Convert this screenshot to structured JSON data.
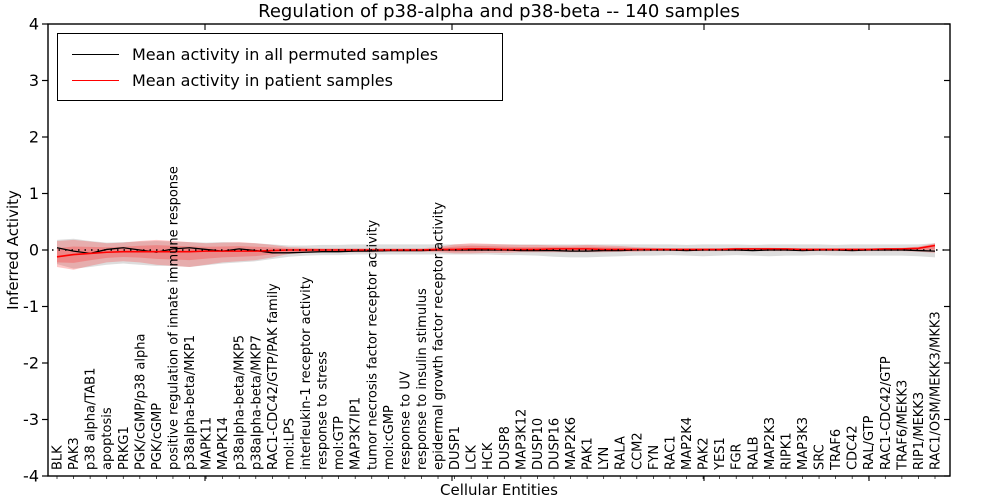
{
  "title": "Regulation of p38-alpha and p38-beta -- 140 samples",
  "axes": {
    "ylabel": "Inferred Activity",
    "xlabel": "Cellular Entities",
    "yticks": [
      "4",
      "3",
      "2",
      "1",
      "0",
      "-1",
      "-2",
      "-3",
      "-4"
    ],
    "ylim": [
      -4,
      4
    ]
  },
  "legend": {
    "items": [
      {
        "label": "Mean activity in all permuted samples",
        "color": "#000000"
      },
      {
        "label": "Mean activity in patient samples",
        "color": "#ff0000"
      }
    ]
  },
  "colors": {
    "permuted_line": "#000000",
    "permuted_band": "#aaaaaa",
    "patient_line": "#ff0000",
    "patient_band": "#ff3333",
    "zero_line": "#000000"
  },
  "chart_data": {
    "type": "line",
    "title": "Regulation of p38-alpha and p38-beta -- 140 samples",
    "xlabel": "Cellular Entities",
    "ylabel": "Inferred Activity",
    "ylim": [
      -4,
      4
    ],
    "grid": false,
    "zero_reference_line": "dotted",
    "legend_position": "upper left",
    "categories": [
      "BLK",
      "PAK3",
      "p38 alpha/TAB1",
      "apoptosis",
      "PRKG1",
      "PGK/cGMP/p38 alpha",
      "PGK/cGMP",
      "positive regulation of innate immune response",
      "p38alpha-beta/MKP1",
      "MAPK11",
      "MAPK14",
      "p38alpha-beta/MKP5",
      "p38alpha-beta/MKP7",
      "RAC1-CDC42/GTP/PAK family",
      "mol:LPS",
      "interleukin-1 receptor activity",
      "response to stress",
      "mol:GTP",
      "MAP3K7IP1",
      "tumor necrosis factor receptor activity",
      "mol:cGMP",
      "response to UV",
      "response to insulin stimulus",
      "epidermal growth factor receptor activity",
      "DUSP1",
      "LCK",
      "HCK",
      "DUSP8",
      "MAP3K12",
      "DUSP10",
      "DUSP16",
      "MAP2K6",
      "PAK1",
      "LYN",
      "RALA",
      "CCM2",
      "FYN",
      "RAC1",
      "MAP2K4",
      "PAK2",
      "YES1",
      "FGR",
      "RALB",
      "MAP2K3",
      "RIPK1",
      "MAP3K3",
      "SRC",
      "TRAF6",
      "CDC42",
      "RAL/GTP",
      "RAC1-CDC42/GTP",
      "TRAF6/MEKK3",
      "RIP1/MEKK3",
      "RAC1/OSM/MEKK3/MKK3"
    ],
    "series": [
      {
        "name": "Mean activity in all permuted samples",
        "color": "#000000",
        "values": [
          0.04,
          -0.02,
          -0.06,
          0.01,
          0.04,
          0.0,
          -0.04,
          0.02,
          0.04,
          0.01,
          -0.02,
          0.02,
          -0.01,
          -0.05,
          -0.05,
          -0.04,
          -0.03,
          -0.03,
          -0.02,
          -0.02,
          -0.01,
          -0.01,
          -0.01,
          0.0,
          0.0,
          0.0,
          0.0,
          0.0,
          -0.01,
          -0.01,
          -0.01,
          -0.02,
          -0.02,
          -0.01,
          -0.01,
          0.0,
          0.0,
          0.0,
          -0.01,
          0.0,
          0.0,
          0.0,
          -0.01,
          0.0,
          0.0,
          -0.01,
          0.0,
          0.0,
          -0.01,
          0.0,
          0.0,
          0.0,
          -0.01,
          -0.02
        ],
        "band_upper": [
          0.18,
          0.2,
          0.16,
          0.13,
          0.14,
          0.15,
          0.16,
          0.15,
          0.14,
          0.13,
          0.14,
          0.13,
          0.12,
          0.1,
          0.08,
          0.08,
          0.09,
          0.09,
          0.1,
          0.1,
          0.1,
          0.1,
          0.1,
          0.1,
          0.1,
          0.1,
          0.1,
          0.1,
          0.1,
          0.1,
          0.1,
          0.1,
          0.1,
          0.1,
          0.1,
          0.1,
          0.1,
          0.1,
          0.09,
          0.1,
          0.1,
          0.1,
          0.09,
          0.1,
          0.1,
          0.1,
          0.1,
          0.09,
          0.1,
          0.1,
          0.1,
          0.1,
          0.1,
          0.12
        ],
        "band_lower": [
          -0.25,
          -0.33,
          -0.3,
          -0.26,
          -0.24,
          -0.26,
          -0.28,
          -0.28,
          -0.3,
          -0.27,
          -0.24,
          -0.22,
          -0.2,
          -0.16,
          -0.12,
          -0.1,
          -0.09,
          -0.09,
          -0.08,
          -0.08,
          -0.08,
          -0.08,
          -0.08,
          -0.08,
          -0.08,
          -0.08,
          -0.08,
          -0.09,
          -0.09,
          -0.1,
          -0.12,
          -0.13,
          -0.13,
          -0.12,
          -0.11,
          -0.1,
          -0.1,
          -0.09,
          -0.1,
          -0.11,
          -0.1,
          -0.09,
          -0.1,
          -0.11,
          -0.1,
          -0.1,
          -0.09,
          -0.1,
          -0.1,
          -0.1,
          -0.1,
          -0.1,
          -0.11,
          -0.13
        ]
      },
      {
        "name": "Mean activity in patient samples",
        "color": "#ff0000",
        "values": [
          -0.12,
          -0.08,
          -0.06,
          -0.04,
          -0.03,
          -0.03,
          -0.03,
          -0.03,
          -0.03,
          -0.02,
          -0.02,
          -0.02,
          -0.02,
          -0.01,
          0.0,
          0.0,
          0.0,
          0.0,
          0.0,
          0.0,
          0.0,
          0.0,
          0.0,
          0.01,
          0.01,
          0.02,
          0.02,
          0.01,
          0.01,
          0.01,
          0.02,
          0.02,
          0.02,
          0.01,
          0.01,
          0.01,
          0.01,
          0.01,
          0.01,
          0.01,
          0.01,
          0.02,
          0.02,
          0.02,
          0.02,
          0.01,
          0.01,
          0.01,
          0.01,
          0.01,
          0.02,
          0.02,
          0.03,
          0.08
        ],
        "band_upper": [
          0.16,
          0.18,
          0.15,
          0.12,
          0.13,
          0.16,
          0.18,
          0.16,
          0.14,
          0.12,
          0.13,
          0.14,
          0.12,
          0.09,
          0.05,
          0.04,
          0.03,
          0.03,
          0.03,
          0.03,
          0.03,
          0.03,
          0.03,
          0.05,
          0.1,
          0.12,
          0.11,
          0.1,
          0.09,
          0.09,
          0.08,
          0.08,
          0.09,
          0.08,
          0.07,
          0.05,
          0.04,
          0.03,
          0.03,
          0.03,
          0.03,
          0.04,
          0.04,
          0.04,
          0.03,
          0.03,
          0.03,
          0.03,
          0.03,
          0.03,
          0.03,
          0.04,
          0.06,
          0.12
        ],
        "band_lower": [
          -0.3,
          -0.35,
          -0.28,
          -0.22,
          -0.2,
          -0.22,
          -0.26,
          -0.28,
          -0.3,
          -0.26,
          -0.22,
          -0.2,
          -0.18,
          -0.13,
          -0.07,
          -0.05,
          -0.04,
          -0.04,
          -0.04,
          -0.04,
          -0.03,
          -0.03,
          -0.03,
          -0.04,
          -0.06,
          -0.06,
          -0.05,
          -0.05,
          -0.04,
          -0.04,
          -0.04,
          -0.04,
          -0.04,
          -0.04,
          -0.03,
          -0.03,
          -0.02,
          -0.02,
          -0.02,
          -0.02,
          -0.02,
          -0.02,
          -0.02,
          -0.02,
          -0.02,
          -0.02,
          -0.02,
          -0.02,
          -0.02,
          -0.02,
          -0.02,
          -0.02,
          -0.03,
          -0.05
        ]
      }
    ]
  }
}
